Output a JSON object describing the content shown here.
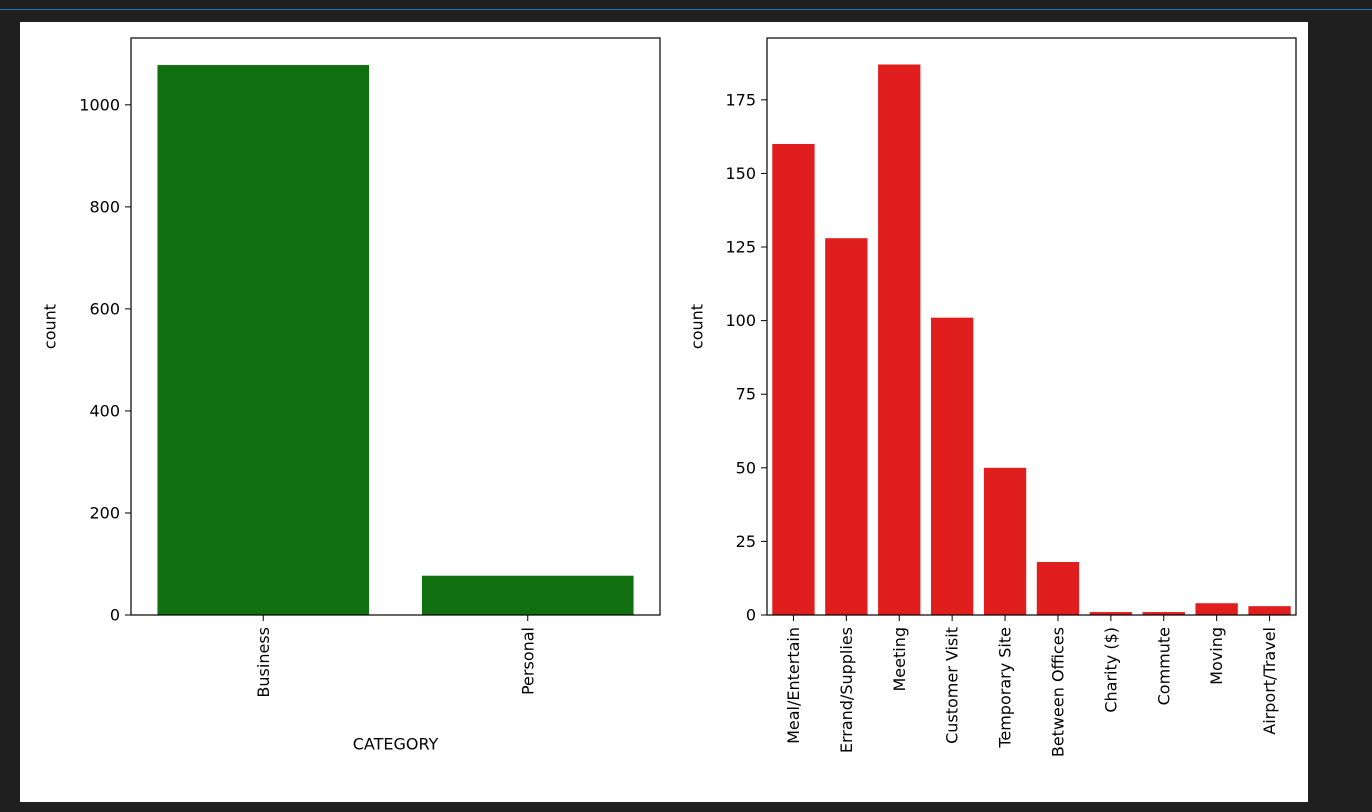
{
  "chart_data": [
    {
      "type": "bar",
      "categories": [
        "Business",
        "Personal"
      ],
      "values": [
        1078,
        77
      ],
      "xlabel": "CATEGORY",
      "ylabel": "count",
      "ylim": [
        0,
        1131
      ],
      "yticks": [
        0,
        200,
        400,
        600,
        800,
        1000
      ],
      "bar_color": "#107010",
      "grid": false
    },
    {
      "type": "bar",
      "categories": [
        "Meal/Entertain",
        "Errand/Supplies",
        "Meeting",
        "Customer Visit",
        "Temporary Site",
        "Between Offices",
        "Charity ($)",
        "Commute",
        "Moving",
        "Airport/Travel"
      ],
      "values": [
        160,
        128,
        187,
        101,
        50,
        18,
        1,
        1,
        4,
        3
      ],
      "xlabel": "",
      "ylabel": "count",
      "ylim": [
        0,
        196
      ],
      "yticks": [
        0,
        25,
        50,
        75,
        100,
        125,
        150,
        175
      ],
      "bar_color": "#e01e1e",
      "grid": false
    }
  ]
}
